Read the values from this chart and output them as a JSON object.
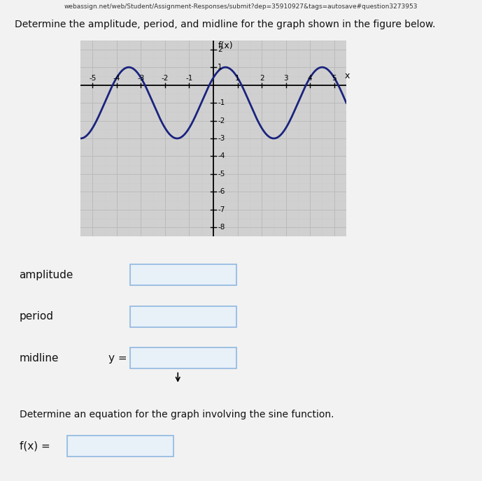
{
  "title": "f(x)",
  "xlabel": "x",
  "xlim": [
    -5.5,
    5.5
  ],
  "ylim": [
    -8.5,
    2.5
  ],
  "xticks": [
    -5,
    -4,
    -3,
    -2,
    -1,
    1,
    2,
    3,
    4,
    5
  ],
  "yticks": [
    -8,
    -7,
    -6,
    -5,
    -4,
    -3,
    -2,
    -1,
    1,
    2
  ],
  "amplitude": 2,
  "period": 4,
  "midline": -1,
  "B": 1.5707963267948966,
  "C": 0.7853981633974483,
  "curve_color": "#1a237e",
  "grid_major_color": "#bbbbbb",
  "grid_minor_color": "#cccccc",
  "plot_bg_color": "#d0d0d0",
  "outer_bg_color": "#f2f2f2",
  "box_edge_color": "#90b8e0",
  "box_face_color": "#e8f0f8",
  "text_color": "#111111",
  "webpage_text": "webassign.net/web/Student/Assignment-Responses/submit?dep=35910927&tags=autosave#question3273953",
  "top_question": "Determine the amplitude, period, and midline for the graph shown in the figure below.",
  "label_amplitude": "amplitude",
  "label_period": "period",
  "label_midline": "midline",
  "label_y_eq": "y =",
  "label_det": "Determine an equation for the graph involving the sine function.",
  "label_fx_eq": "f(x) ="
}
